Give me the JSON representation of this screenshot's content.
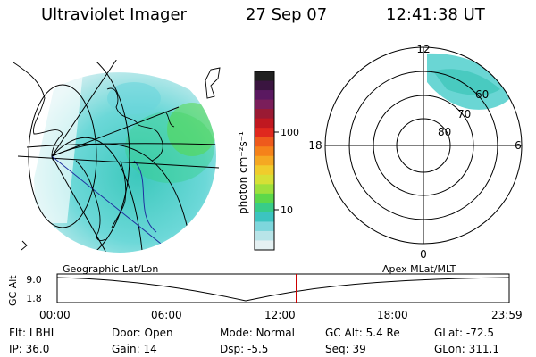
{
  "header": {
    "title": "Ultraviolet Imager",
    "date": "27 Sep 07",
    "time": "12:41:38 UT"
  },
  "colorbar": {
    "label": "photon cm⁻²s⁻¹",
    "ticks": [
      "100",
      "10"
    ],
    "colors": [
      "#202020",
      "#3a1540",
      "#5a1860",
      "#7a1e5a",
      "#9a1a33",
      "#c01820",
      "#e0281e",
      "#ee5a1c",
      "#f5821a",
      "#f5a822",
      "#f0cc2c",
      "#d6e036",
      "#9ee03c",
      "#5cd84a",
      "#38cc88",
      "#3cc4c0",
      "#7ed6dc",
      "#b8e4e8",
      "#e4f0f2"
    ]
  },
  "polar": {
    "mlt_labels": {
      "top": "12",
      "left": "18",
      "right": "6",
      "bottom": "0"
    },
    "lat_labels": [
      "60",
      "70",
      "80"
    ]
  },
  "timeline": {
    "left_label": "Geographic Lat/Lon",
    "right_label": "Apex MLat/MLT",
    "axis_label": "GC Alt",
    "y_ticks": [
      "9.0",
      "1.8"
    ],
    "x_ticks": [
      "00:00",
      "06:00",
      "12:00",
      "18:00",
      "23:59"
    ],
    "current_time_hours": 12.69,
    "cursor_color": "#cc0000"
  },
  "footer": [
    [
      {
        "label": "Flt:",
        "value": "LBHL"
      },
      {
        "label": "Door:",
        "value": "Open"
      },
      {
        "label": "Mode:",
        "value": "Normal"
      },
      {
        "label": "GC Alt:",
        "value": "5.4 Re"
      },
      {
        "label": "GLat:",
        "value": "-72.5"
      }
    ],
    [
      {
        "label": "IP:",
        "value": "36.0"
      },
      {
        "label": "Gain:",
        "value": "14"
      },
      {
        "label": "Dsp:",
        "value": "-5.5"
      },
      {
        "label": "Seq:",
        "value": "39"
      },
      {
        "label": "GLon:",
        "value": "311.1"
      }
    ]
  ]
}
